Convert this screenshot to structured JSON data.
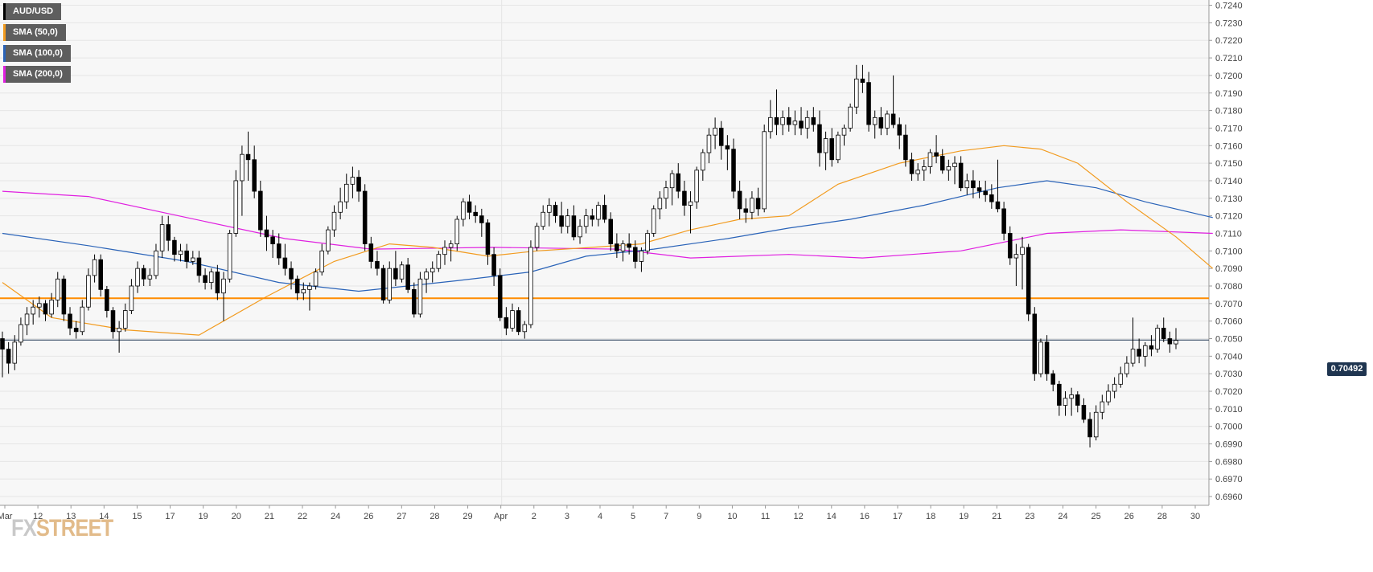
{
  "legend": [
    {
      "label": "AUD/USD",
      "color": "#000000"
    },
    {
      "label": "SMA (50,0)",
      "color": "#f29b1f"
    },
    {
      "label": "SMA (100,0)",
      "color": "#2a63b8"
    },
    {
      "label": "SMA (200,0)",
      "color": "#e020e0"
    }
  ],
  "price_tag": "0.70492",
  "logo": {
    "fx": "FX",
    "street": "STREET"
  },
  "chart_data": {
    "type": "candlestick",
    "title": "AUD/USD",
    "ylim": [
      0.6955,
      0.7243
    ],
    "y_ticks": [
      "0.6960",
      "0.6970",
      "0.6980",
      "0.6990",
      "0.7000",
      "0.7010",
      "0.7020",
      "0.7030",
      "0.7040",
      "0.7050",
      "0.7060",
      "0.7070",
      "0.7080",
      "0.7090",
      "0.7100",
      "0.7110",
      "0.7120",
      "0.7130",
      "0.7140",
      "0.7150",
      "0.7160",
      "0.7170",
      "0.7180",
      "0.7190",
      "0.7200",
      "0.7210",
      "0.7220",
      "0.7230",
      "0.7240"
    ],
    "x_tick_labels": [
      "Mar",
      "12",
      "13",
      "14",
      "15",
      "17",
      "19",
      "20",
      "21",
      "22",
      "24",
      "26",
      "27",
      "28",
      "29",
      "Apr",
      "2",
      "3",
      "4",
      "5",
      "7",
      "9",
      "10",
      "11",
      "12",
      "14",
      "16",
      "17",
      "18",
      "19",
      "21",
      "23",
      "24",
      "25",
      "26",
      "28",
      "30"
    ],
    "current_price": 0.70492,
    "horizontal_level": {
      "value": 0.7073,
      "color": "#ff8c00"
    },
    "grid": true,
    "colors": {
      "up": "#ffffff",
      "down": "#000000",
      "sma50": "#f29b1f",
      "sma100": "#2a63b8",
      "sma200": "#e020e0"
    },
    "candles": [
      [
        0.705,
        0.7054,
        0.7028,
        0.7044
      ],
      [
        0.7044,
        0.7048,
        0.703,
        0.7036
      ],
      [
        0.7036,
        0.7052,
        0.7032,
        0.7048
      ],
      [
        0.7048,
        0.7062,
        0.7046,
        0.7058
      ],
      [
        0.7058,
        0.7068,
        0.7052,
        0.7064
      ],
      [
        0.7064,
        0.7072,
        0.7058,
        0.7068
      ],
      [
        0.7068,
        0.7074,
        0.7062,
        0.707
      ],
      [
        0.707,
        0.7072,
        0.706,
        0.7064
      ],
      [
        0.7064,
        0.7076,
        0.7062,
        0.7072
      ],
      [
        0.7072,
        0.7088,
        0.7068,
        0.7084
      ],
      [
        0.7084,
        0.7086,
        0.706,
        0.7064
      ],
      [
        0.7064,
        0.7068,
        0.7052,
        0.7056
      ],
      [
        0.7056,
        0.706,
        0.705,
        0.7054
      ],
      [
        0.7054,
        0.7072,
        0.7052,
        0.7068
      ],
      [
        0.7068,
        0.709,
        0.7066,
        0.7086
      ],
      [
        0.7086,
        0.7098,
        0.7082,
        0.7095
      ],
      [
        0.7095,
        0.7098,
        0.7074,
        0.7078
      ],
      [
        0.7078,
        0.708,
        0.7062,
        0.7066
      ],
      [
        0.7066,
        0.7068,
        0.705,
        0.7054
      ],
      [
        0.7054,
        0.706,
        0.7042,
        0.7056
      ],
      [
        0.7056,
        0.707,
        0.7054,
        0.7066
      ],
      [
        0.7066,
        0.7084,
        0.7064,
        0.708
      ],
      [
        0.708,
        0.7094,
        0.7076,
        0.709
      ],
      [
        0.709,
        0.7092,
        0.708,
        0.7084
      ],
      [
        0.7084,
        0.709,
        0.708,
        0.7086
      ],
      [
        0.7086,
        0.7104,
        0.7084,
        0.71
      ],
      [
        0.71,
        0.712,
        0.7096,
        0.7115
      ],
      [
        0.7115,
        0.712,
        0.71,
        0.7106
      ],
      [
        0.7106,
        0.7108,
        0.7094,
        0.7098
      ],
      [
        0.7098,
        0.7104,
        0.7094,
        0.71
      ],
      [
        0.71,
        0.7104,
        0.709,
        0.7094
      ],
      [
        0.7094,
        0.71,
        0.7092,
        0.7096
      ],
      [
        0.7096,
        0.71,
        0.7082,
        0.7086
      ],
      [
        0.7086,
        0.709,
        0.7078,
        0.7082
      ],
      [
        0.7082,
        0.709,
        0.7078,
        0.7088
      ],
      [
        0.7088,
        0.7092,
        0.7072,
        0.7076
      ],
      [
        0.7076,
        0.7088,
        0.706,
        0.7084
      ],
      [
        0.7084,
        0.7112,
        0.7082,
        0.711
      ],
      [
        0.711,
        0.7146,
        0.7108,
        0.714
      ],
      [
        0.714,
        0.716,
        0.712,
        0.7155
      ],
      [
        0.7155,
        0.7168,
        0.714,
        0.7152
      ],
      [
        0.7152,
        0.716,
        0.713,
        0.7134
      ],
      [
        0.7134,
        0.714,
        0.7108,
        0.7112
      ],
      [
        0.7112,
        0.712,
        0.71,
        0.7108
      ],
      [
        0.7108,
        0.7112,
        0.7096,
        0.7104
      ],
      [
        0.7104,
        0.711,
        0.7092,
        0.7096
      ],
      [
        0.7096,
        0.7104,
        0.7086,
        0.709
      ],
      [
        0.709,
        0.7094,
        0.7078,
        0.7084
      ],
      [
        0.7084,
        0.7086,
        0.7072,
        0.7076
      ],
      [
        0.7076,
        0.7082,
        0.7072,
        0.7078
      ],
      [
        0.7078,
        0.7082,
        0.7066,
        0.708
      ],
      [
        0.708,
        0.709,
        0.7078,
        0.7088
      ],
      [
        0.7088,
        0.7104,
        0.7086,
        0.71
      ],
      [
        0.71,
        0.7114,
        0.7098,
        0.7112
      ],
      [
        0.7112,
        0.7126,
        0.7108,
        0.7122
      ],
      [
        0.7122,
        0.7136,
        0.7118,
        0.7128
      ],
      [
        0.7128,
        0.7144,
        0.7124,
        0.7138
      ],
      [
        0.7138,
        0.7148,
        0.713,
        0.7142
      ],
      [
        0.7142,
        0.7146,
        0.7128,
        0.7134
      ],
      [
        0.7134,
        0.7138,
        0.71,
        0.7104
      ],
      [
        0.7104,
        0.7108,
        0.709,
        0.7094
      ],
      [
        0.7094,
        0.71,
        0.7086,
        0.709
      ],
      [
        0.709,
        0.7092,
        0.707,
        0.7072
      ],
      [
        0.7072,
        0.7094,
        0.707,
        0.709
      ],
      [
        0.709,
        0.71,
        0.708,
        0.7084
      ],
      [
        0.7084,
        0.7094,
        0.7082,
        0.7092
      ],
      [
        0.7092,
        0.7096,
        0.7076,
        0.7078
      ],
      [
        0.7078,
        0.7082,
        0.7062,
        0.7064
      ],
      [
        0.7064,
        0.7088,
        0.7062,
        0.7084
      ],
      [
        0.7084,
        0.709,
        0.7076,
        0.7088
      ],
      [
        0.7088,
        0.7094,
        0.7082,
        0.709
      ],
      [
        0.709,
        0.71,
        0.7088,
        0.7098
      ],
      [
        0.7098,
        0.7106,
        0.7092,
        0.7102
      ],
      [
        0.7102,
        0.7106,
        0.7094,
        0.7104
      ],
      [
        0.7104,
        0.712,
        0.71,
        0.7118
      ],
      [
        0.7118,
        0.713,
        0.7114,
        0.7128
      ],
      [
        0.7128,
        0.7132,
        0.7118,
        0.7122
      ],
      [
        0.7122,
        0.7126,
        0.7116,
        0.712
      ],
      [
        0.712,
        0.7124,
        0.7108,
        0.7116
      ],
      [
        0.7116,
        0.7118,
        0.7092,
        0.7098
      ],
      [
        0.7098,
        0.7102,
        0.708,
        0.7086
      ],
      [
        0.7086,
        0.709,
        0.706,
        0.7062
      ],
      [
        0.7062,
        0.7068,
        0.7052,
        0.7056
      ],
      [
        0.7056,
        0.707,
        0.7054,
        0.7066
      ],
      [
        0.7066,
        0.7068,
        0.7052,
        0.7054
      ],
      [
        0.7054,
        0.706,
        0.705,
        0.7058
      ],
      [
        0.7058,
        0.7106,
        0.7056,
        0.7102
      ],
      [
        0.7102,
        0.7116,
        0.71,
        0.7114
      ],
      [
        0.7114,
        0.7126,
        0.7112,
        0.7122
      ],
      [
        0.7122,
        0.713,
        0.7114,
        0.7126
      ],
      [
        0.7126,
        0.7128,
        0.7116,
        0.712
      ],
      [
        0.712,
        0.7128,
        0.711,
        0.7114
      ],
      [
        0.7114,
        0.7124,
        0.711,
        0.712
      ],
      [
        0.712,
        0.7126,
        0.7106,
        0.7108
      ],
      [
        0.7108,
        0.7118,
        0.7104,
        0.7114
      ],
      [
        0.7114,
        0.7124,
        0.711,
        0.712
      ],
      [
        0.712,
        0.7124,
        0.7114,
        0.7118
      ],
      [
        0.7118,
        0.7128,
        0.7114,
        0.7126
      ],
      [
        0.7126,
        0.7132,
        0.7116,
        0.7118
      ],
      [
        0.7118,
        0.7122,
        0.71,
        0.7104
      ],
      [
        0.7104,
        0.711,
        0.7096,
        0.71
      ],
      [
        0.71,
        0.7106,
        0.7094,
        0.7104
      ],
      [
        0.7104,
        0.711,
        0.7098,
        0.7102
      ],
      [
        0.7102,
        0.7106,
        0.709,
        0.7094
      ],
      [
        0.7094,
        0.7102,
        0.7088,
        0.71
      ],
      [
        0.71,
        0.7112,
        0.7098,
        0.711
      ],
      [
        0.711,
        0.7126,
        0.7108,
        0.7124
      ],
      [
        0.7124,
        0.7134,
        0.7118,
        0.713
      ],
      [
        0.713,
        0.714,
        0.7124,
        0.7136
      ],
      [
        0.7136,
        0.7146,
        0.7126,
        0.7144
      ],
      [
        0.7144,
        0.715,
        0.713,
        0.7134
      ],
      [
        0.7134,
        0.714,
        0.712,
        0.7126
      ],
      [
        0.7126,
        0.7134,
        0.711,
        0.7128
      ],
      [
        0.7128,
        0.7148,
        0.7124,
        0.7146
      ],
      [
        0.7146,
        0.7158,
        0.714,
        0.7156
      ],
      [
        0.7156,
        0.717,
        0.715,
        0.7166
      ],
      [
        0.7166,
        0.7176,
        0.7158,
        0.717
      ],
      [
        0.717,
        0.7174,
        0.7152,
        0.716
      ],
      [
        0.716,
        0.7166,
        0.7146,
        0.7158
      ],
      [
        0.7158,
        0.7164,
        0.713,
        0.7134
      ],
      [
        0.7134,
        0.714,
        0.7118,
        0.7124
      ],
      [
        0.7124,
        0.713,
        0.7116,
        0.7122
      ],
      [
        0.7122,
        0.7134,
        0.7118,
        0.713
      ],
      [
        0.713,
        0.7136,
        0.712,
        0.7124
      ],
      [
        0.7124,
        0.7172,
        0.7122,
        0.7168
      ],
      [
        0.7168,
        0.7186,
        0.7164,
        0.7176
      ],
      [
        0.7176,
        0.7192,
        0.7166,
        0.7172
      ],
      [
        0.7172,
        0.718,
        0.7166,
        0.7176
      ],
      [
        0.7176,
        0.7182,
        0.7168,
        0.7172
      ],
      [
        0.7172,
        0.718,
        0.7166,
        0.7174
      ],
      [
        0.7174,
        0.7182,
        0.7166,
        0.717
      ],
      [
        0.717,
        0.718,
        0.7164,
        0.7176
      ],
      [
        0.7176,
        0.7182,
        0.7168,
        0.7172
      ],
      [
        0.7172,
        0.718,
        0.7148,
        0.7156
      ],
      [
        0.7156,
        0.7168,
        0.7146,
        0.7164
      ],
      [
        0.7164,
        0.717,
        0.7148,
        0.7152
      ],
      [
        0.7152,
        0.7168,
        0.715,
        0.7166
      ],
      [
        0.7166,
        0.7172,
        0.716,
        0.717
      ],
      [
        0.717,
        0.7184,
        0.7168,
        0.7182
      ],
      [
        0.7182,
        0.7206,
        0.7178,
        0.7198
      ],
      [
        0.7198,
        0.7206,
        0.719,
        0.7196
      ],
      [
        0.7196,
        0.7202,
        0.7168,
        0.7172
      ],
      [
        0.7172,
        0.718,
        0.7164,
        0.7176
      ],
      [
        0.7176,
        0.7182,
        0.7166,
        0.717
      ],
      [
        0.717,
        0.718,
        0.7166,
        0.7178
      ],
      [
        0.7178,
        0.72,
        0.717,
        0.7172
      ],
      [
        0.7172,
        0.7176,
        0.7158,
        0.7166
      ],
      [
        0.7166,
        0.7172,
        0.7148,
        0.7152
      ],
      [
        0.7152,
        0.7156,
        0.714,
        0.7144
      ],
      [
        0.7144,
        0.715,
        0.714,
        0.7146
      ],
      [
        0.7146,
        0.7152,
        0.714,
        0.7148
      ],
      [
        0.7148,
        0.7158,
        0.7144,
        0.7156
      ],
      [
        0.7156,
        0.7166,
        0.715,
        0.7154
      ],
      [
        0.7154,
        0.7158,
        0.7144,
        0.7146
      ],
      [
        0.7146,
        0.7152,
        0.714,
        0.7148
      ],
      [
        0.7148,
        0.7154,
        0.7138,
        0.715
      ],
      [
        0.715,
        0.7154,
        0.7134,
        0.7136
      ],
      [
        0.7136,
        0.7144,
        0.7132,
        0.714
      ],
      [
        0.714,
        0.7146,
        0.713,
        0.7136
      ],
      [
        0.7136,
        0.714,
        0.713,
        0.7134
      ],
      [
        0.7134,
        0.714,
        0.7128,
        0.7132
      ],
      [
        0.7132,
        0.7138,
        0.7124,
        0.7128
      ],
      [
        0.7128,
        0.7152,
        0.7122,
        0.7124
      ],
      [
        0.7124,
        0.7128,
        0.7106,
        0.711
      ],
      [
        0.711,
        0.7114,
        0.7092,
        0.7096
      ],
      [
        0.7096,
        0.7104,
        0.708,
        0.7098
      ],
      [
        0.7098,
        0.7108,
        0.7078,
        0.7102
      ],
      [
        0.7102,
        0.7104,
        0.706,
        0.7064
      ],
      [
        0.7064,
        0.7068,
        0.7026,
        0.703
      ],
      [
        0.703,
        0.705,
        0.7028,
        0.7048
      ],
      [
        0.7048,
        0.7052,
        0.7026,
        0.703
      ],
      [
        0.703,
        0.7032,
        0.702,
        0.7024
      ],
      [
        0.7024,
        0.7026,
        0.7006,
        0.7012
      ],
      [
        0.7012,
        0.702,
        0.7006,
        0.7016
      ],
      [
        0.7016,
        0.7022,
        0.7006,
        0.7018
      ],
      [
        0.7018,
        0.702,
        0.7008,
        0.7012
      ],
      [
        0.7012,
        0.7016,
        0.7002,
        0.7004
      ],
      [
        0.7004,
        0.7008,
        0.6988,
        0.6994
      ],
      [
        0.6994,
        0.7012,
        0.6992,
        0.7008
      ],
      [
        0.7008,
        0.7018,
        0.7004,
        0.7014
      ],
      [
        0.7014,
        0.7024,
        0.7012,
        0.702
      ],
      [
        0.702,
        0.7028,
        0.7016,
        0.7024
      ],
      [
        0.7024,
        0.7034,
        0.7022,
        0.703
      ],
      [
        0.703,
        0.704,
        0.7028,
        0.7036
      ],
      [
        0.7036,
        0.7062,
        0.7034,
        0.7044
      ],
      [
        0.7044,
        0.705,
        0.7036,
        0.704
      ],
      [
        0.704,
        0.7048,
        0.7034,
        0.7046
      ],
      [
        0.7046,
        0.7052,
        0.704,
        0.7044
      ],
      [
        0.7044,
        0.7058,
        0.7042,
        0.7056
      ],
      [
        0.7056,
        0.7062,
        0.7048,
        0.705
      ],
      [
        0.705,
        0.7054,
        0.7042,
        0.7047
      ],
      [
        0.7047,
        0.7056,
        0.7044,
        0.7049
      ]
    ],
    "sma50": [
      [
        0,
        0.7082
      ],
      [
        8,
        0.7062
      ],
      [
        20,
        0.7055
      ],
      [
        32,
        0.7052
      ],
      [
        43,
        0.7074
      ],
      [
        54,
        0.7094
      ],
      [
        63,
        0.7104
      ],
      [
        70,
        0.7102
      ],
      [
        79,
        0.7097
      ],
      [
        87,
        0.71
      ],
      [
        96,
        0.7102
      ],
      [
        104,
        0.7104
      ],
      [
        112,
        0.7112
      ],
      [
        120,
        0.7118
      ],
      [
        128,
        0.712
      ],
      [
        136,
        0.7138
      ],
      [
        146,
        0.715
      ],
      [
        156,
        0.7157
      ],
      [
        163,
        0.716
      ],
      [
        169,
        0.7158
      ],
      [
        175,
        0.715
      ],
      [
        183,
        0.7128
      ],
      [
        191,
        0.7108
      ],
      [
        197,
        0.709
      ]
    ],
    "sma100": [
      [
        0,
        0.711
      ],
      [
        14,
        0.7103
      ],
      [
        30,
        0.7094
      ],
      [
        45,
        0.7082
      ],
      [
        58,
        0.7077
      ],
      [
        74,
        0.7083
      ],
      [
        86,
        0.7088
      ],
      [
        95,
        0.7097
      ],
      [
        106,
        0.7101
      ],
      [
        118,
        0.7107
      ],
      [
        128,
        0.7113
      ],
      [
        138,
        0.7118
      ],
      [
        150,
        0.7126
      ],
      [
        162,
        0.7136
      ],
      [
        170,
        0.714
      ],
      [
        178,
        0.7136
      ],
      [
        186,
        0.7128
      ],
      [
        197,
        0.7119
      ]
    ],
    "sma200": [
      [
        0,
        0.7134
      ],
      [
        14,
        0.7131
      ],
      [
        30,
        0.7119
      ],
      [
        46,
        0.7107
      ],
      [
        60,
        0.7101
      ],
      [
        80,
        0.7102
      ],
      [
        100,
        0.7101
      ],
      [
        112,
        0.7096
      ],
      [
        128,
        0.7098
      ],
      [
        140,
        0.7096
      ],
      [
        156,
        0.71
      ],
      [
        170,
        0.711
      ],
      [
        182,
        0.7112
      ],
      [
        197,
        0.711
      ]
    ]
  }
}
